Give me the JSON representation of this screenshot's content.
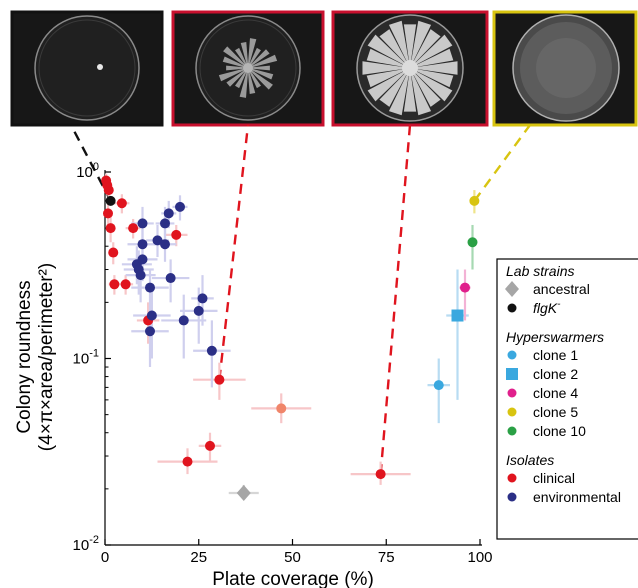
{
  "chart_data": {
    "type": "scatter",
    "title": "",
    "xlabel": "Plate coverage (%)",
    "ylabel_line1": "Colony roundness",
    "ylabel_line2": "(4×π×area/perimeter²)",
    "xlim": [
      0,
      100
    ],
    "ylim": [
      0.01,
      1
    ],
    "yscale": "log",
    "x_ticks": [
      0,
      25,
      50,
      75,
      100
    ],
    "y_ticks": [
      {
        "base": "10",
        "exp": "0",
        "value": 1
      },
      {
        "base": "10",
        "exp": "-1",
        "value": 0.1
      },
      {
        "base": "10",
        "exp": "-2",
        "value": 0.01
      }
    ],
    "legend": {
      "placement": "right",
      "groups": [
        {
          "title": "Lab strains",
          "items": [
            {
              "label": "ancestral",
              "marker": "diamond",
              "color": "#a6a6a6"
            },
            {
              "label": "flgK",
              "sup": "-",
              "marker": "circle",
              "color": "#111111",
              "italic": true
            }
          ]
        },
        {
          "title": "Hyperswarmers",
          "items": [
            {
              "label": "clone 1",
              "marker": "circle",
              "color": "#3aa8df"
            },
            {
              "label": "clone 2",
              "marker": "square",
              "color": "#3aa8df"
            },
            {
              "label": "clone 4",
              "marker": "circle",
              "color": "#e0208c"
            },
            {
              "label": "clone 5",
              "marker": "circle",
              "color": "#d8c410"
            },
            {
              "label": "clone 10",
              "marker": "circle",
              "color": "#2aa045"
            }
          ]
        },
        {
          "title": "Isolates",
          "items": [
            {
              "label": "clinical",
              "marker": "circle",
              "color": "#e0141e"
            },
            {
              "label": "environmental",
              "marker": "circle",
              "color": "#2b2f86"
            }
          ]
        }
      ]
    },
    "series": [
      {
        "group": "Lab strains",
        "label": "ancestral",
        "marker": "diamond",
        "color": "#a6a6a6",
        "error_color": "#d6d6d6",
        "points": [
          {
            "x": 37,
            "y": 0.019,
            "xerr": 4,
            "yerr": [
              0.018,
              0.021
            ]
          }
        ]
      },
      {
        "group": "Lab strains",
        "label": "flgK",
        "marker": "circle",
        "color": "#111111",
        "error_color": "#999999",
        "points": [
          {
            "x": 1.5,
            "y": 0.7,
            "xerr": 0.5,
            "yerr": [
              0.66,
              0.74
            ]
          }
        ]
      },
      {
        "group": "Hyperswarmers",
        "label": "clone 1",
        "marker": "circle",
        "color": "#3aa8df",
        "error_color": "#b8dcf2",
        "points": [
          {
            "x": 89,
            "y": 0.072,
            "xerr": 3,
            "yerr": [
              0.045,
              0.1
            ]
          }
        ]
      },
      {
        "group": "Hyperswarmers",
        "label": "clone 2",
        "marker": "square",
        "color": "#3aa8df",
        "error_color": "#b8dcf2",
        "points": [
          {
            "x": 94,
            "y": 0.17,
            "xerr": 3,
            "yerr": [
              0.06,
              0.3
            ]
          }
        ]
      },
      {
        "group": "Hyperswarmers",
        "label": "clone 4",
        "marker": "circle",
        "color": "#e0208c",
        "error_color": "#f3b2d5",
        "points": [
          {
            "x": 96,
            "y": 0.24,
            "xerr": 1.5,
            "yerr": [
              0.16,
              0.3
            ]
          }
        ]
      },
      {
        "group": "Hyperswarmers",
        "label": "clone 5",
        "marker": "circle",
        "color": "#d8c410",
        "error_color": "#efe48a",
        "points": [
          {
            "x": 98.5,
            "y": 0.7,
            "xerr": 1,
            "yerr": [
              0.6,
              0.8
            ]
          }
        ]
      },
      {
        "group": "Hyperswarmers",
        "label": "clone 10",
        "marker": "circle",
        "color": "#2aa045",
        "error_color": "#a6d9b2",
        "points": [
          {
            "x": 98,
            "y": 0.42,
            "xerr": 1,
            "yerr": [
              0.3,
              0.52
            ]
          }
        ]
      },
      {
        "group": "Isolates",
        "label": "clinical",
        "marker": "circle",
        "color": "#e0141e",
        "error_color": "#f7c6c8",
        "points": [
          {
            "x": 0.3,
            "y": 0.9,
            "xerr": 1,
            "yerr": [
              0.8,
              0.98
            ]
          },
          {
            "x": 0.6,
            "y": 0.85,
            "xerr": 1,
            "yerr": [
              0.75,
              0.95
            ]
          },
          {
            "x": 1.0,
            "y": 0.8,
            "xerr": 1,
            "yerr": [
              0.7,
              0.9
            ]
          },
          {
            "x": 0.8,
            "y": 0.6,
            "xerr": 1,
            "yerr": [
              0.5,
              0.7
            ]
          },
          {
            "x": 1.5,
            "y": 0.5,
            "xerr": 1,
            "yerr": [
              0.42,
              0.58
            ]
          },
          {
            "x": 4.5,
            "y": 0.68,
            "xerr": 2,
            "yerr": [
              0.6,
              0.76
            ]
          },
          {
            "x": 2.2,
            "y": 0.37,
            "xerr": 1,
            "yerr": [
              0.32,
              0.42
            ]
          },
          {
            "x": 2.5,
            "y": 0.25,
            "xerr": 1.5,
            "yerr": [
              0.22,
              0.28
            ]
          },
          {
            "x": 5.5,
            "y": 0.25,
            "xerr": 2,
            "yerr": [
              0.22,
              0.28
            ]
          },
          {
            "x": 7.5,
            "y": 0.5,
            "xerr": 2,
            "yerr": [
              0.44,
              0.56
            ]
          },
          {
            "x": 19,
            "y": 0.46,
            "xerr": 3,
            "yerr": [
              0.4,
              0.52
            ]
          },
          {
            "x": 11.5,
            "y": 0.16,
            "xerr": 3,
            "yerr": [
              0.12,
              0.2
            ]
          },
          {
            "x": 30.5,
            "y": 0.077,
            "xerr": 7,
            "yerr": [
              0.06,
              0.095
            ]
          },
          {
            "x": 47,
            "y": 0.054,
            "xerr": 8,
            "yerr": [
              0.045,
              0.065
            ],
            "color": "#f0856a"
          },
          {
            "x": 28,
            "y": 0.034,
            "xerr": 3,
            "yerr": [
              0.028,
              0.04
            ]
          },
          {
            "x": 22,
            "y": 0.028,
            "xerr": 8,
            "yerr": [
              0.024,
              0.033
            ]
          },
          {
            "x": 73.5,
            "y": 0.024,
            "xerr": 8,
            "yerr": [
              0.021,
              0.028
            ]
          }
        ]
      },
      {
        "group": "Isolates",
        "label": "environmental",
        "marker": "circle",
        "color": "#2b2f86",
        "error_color": "#cfcfee",
        "points": [
          {
            "x": 10,
            "y": 0.53,
            "xerr": 3,
            "yerr": [
              0.4,
              0.65
            ]
          },
          {
            "x": 16,
            "y": 0.53,
            "xerr": 2.5,
            "yerr": [
              0.4,
              0.65
            ]
          },
          {
            "x": 20,
            "y": 0.65,
            "xerr": 2,
            "yerr": [
              0.55,
              0.75
            ]
          },
          {
            "x": 17,
            "y": 0.6,
            "xerr": 2,
            "yerr": [
              0.5,
              0.7
            ]
          },
          {
            "x": 14,
            "y": 0.43,
            "xerr": 3,
            "yerr": [
              0.35,
              0.52
            ]
          },
          {
            "x": 16,
            "y": 0.41,
            "xerr": 3,
            "yerr": [
              0.33,
              0.5
            ]
          },
          {
            "x": 10,
            "y": 0.41,
            "xerr": 4,
            "yerr": [
              0.32,
              0.5
            ]
          },
          {
            "x": 8.5,
            "y": 0.32,
            "xerr": 4,
            "yerr": [
              0.25,
              0.4
            ]
          },
          {
            "x": 10,
            "y": 0.34,
            "xerr": 4,
            "yerr": [
              0.26,
              0.42
            ]
          },
          {
            "x": 9,
            "y": 0.3,
            "xerr": 4,
            "yerr": [
              0.22,
              0.38
            ]
          },
          {
            "x": 9.5,
            "y": 0.28,
            "xerr": 4,
            "yerr": [
              0.2,
              0.36
            ]
          },
          {
            "x": 17.5,
            "y": 0.27,
            "xerr": 5,
            "yerr": [
              0.2,
              0.34
            ]
          },
          {
            "x": 12,
            "y": 0.24,
            "xerr": 5,
            "yerr": [
              0.18,
              0.3
            ]
          },
          {
            "x": 26,
            "y": 0.21,
            "xerr": 3,
            "yerr": [
              0.15,
              0.28
            ]
          },
          {
            "x": 25,
            "y": 0.18,
            "xerr": 5,
            "yerr": [
              0.12,
              0.24
            ]
          },
          {
            "x": 21,
            "y": 0.16,
            "xerr": 6,
            "yerr": [
              0.1,
              0.22
            ]
          },
          {
            "x": 12.5,
            "y": 0.17,
            "xerr": 5,
            "yerr": [
              0.1,
              0.24
            ]
          },
          {
            "x": 12,
            "y": 0.14,
            "xerr": 5,
            "yerr": [
              0.09,
              0.2
            ]
          },
          {
            "x": 28.5,
            "y": 0.11,
            "xerr": 5,
            "yerr": [
              0.07,
              0.16
            ]
          }
        ]
      }
    ],
    "callouts": [
      {
        "x": 1.5,
        "y": 0.7,
        "color": "#111111",
        "frame": "#111111",
        "pattern": "dot"
      },
      {
        "x": 30.5,
        "y": 0.077,
        "color": "#e0141e",
        "frame": "#c8102e",
        "pattern": "star-small"
      },
      {
        "x": 73.5,
        "y": 0.024,
        "color": "#e0141e",
        "frame": "#c8102e",
        "pattern": "star-large"
      },
      {
        "x": 98.5,
        "y": 0.7,
        "color": "#d8c410",
        "frame": "#d8c410",
        "pattern": "fill"
      }
    ]
  }
}
